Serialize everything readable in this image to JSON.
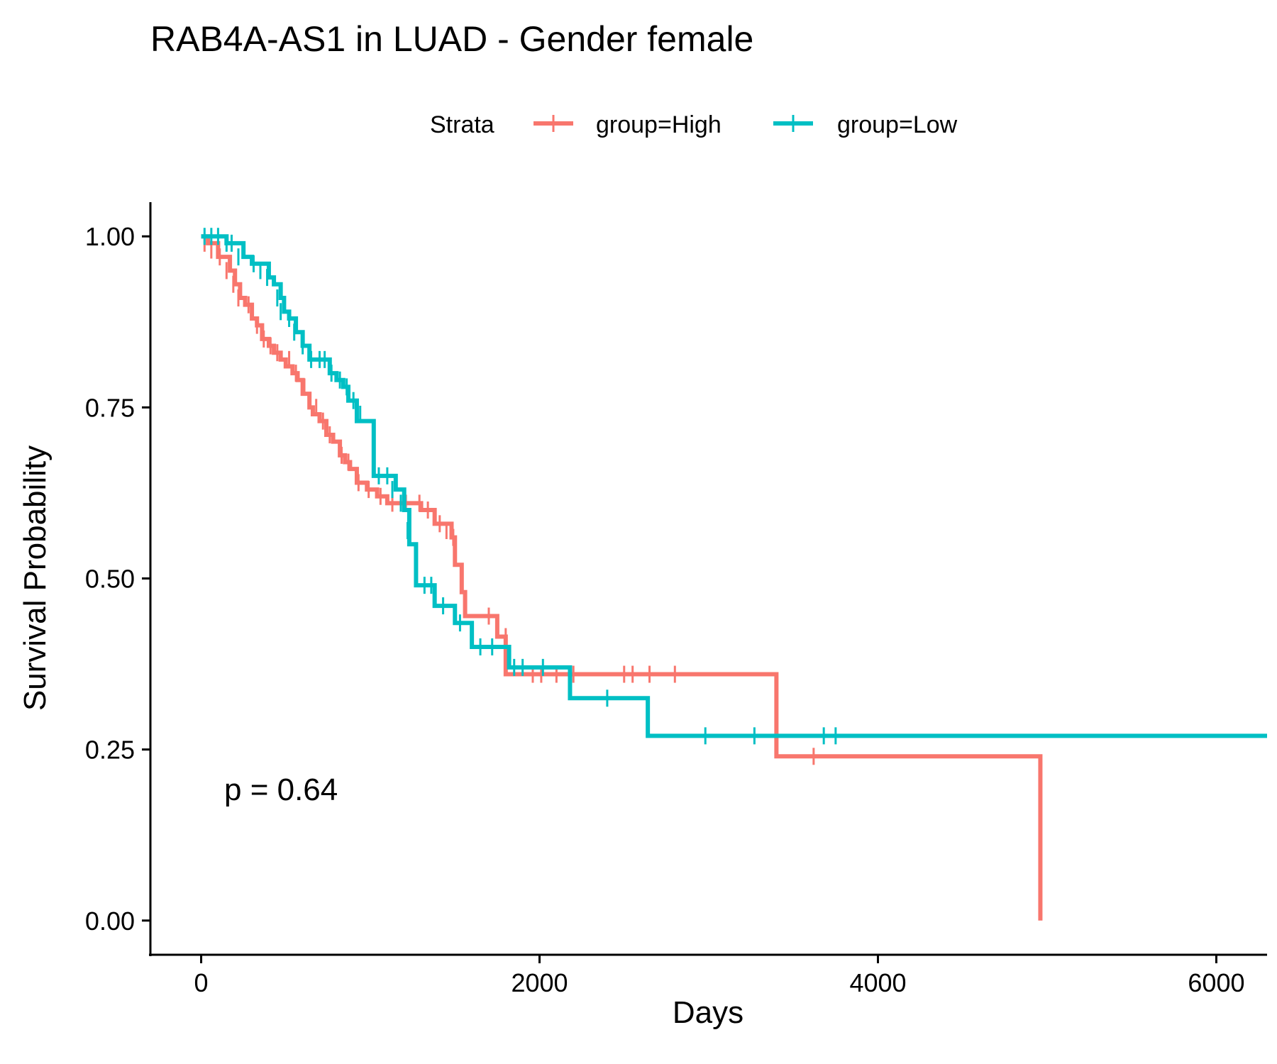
{
  "chart_data": {
    "type": "line",
    "title": "RAB4A-AS1 in LUAD - Gender female",
    "xlabel": "Days",
    "ylabel": "Survival Probability",
    "xlim": [
      -300,
      6300
    ],
    "ylim": [
      -0.05,
      1.05
    ],
    "x_ticks": [
      0,
      2000,
      4000,
      6000
    ],
    "x_tick_labels": [
      "0",
      "2000",
      "4000",
      "6000"
    ],
    "y_ticks": [
      0,
      0.25,
      0.5,
      0.75,
      1.0
    ],
    "y_tick_labels": [
      "0.00",
      "0.25",
      "0.50",
      "0.75",
      "1.00"
    ],
    "grid": false,
    "legend": {
      "position": "top",
      "title": "Strata",
      "entries": [
        "group=High",
        "group=Low"
      ]
    },
    "annotation": "p = 0.64",
    "series": [
      {
        "name": "group=High",
        "color": "#F8766D",
        "x": [
          0,
          40,
          100,
          170,
          200,
          230,
          260,
          300,
          330,
          360,
          400,
          430,
          470,
          500,
          540,
          570,
          600,
          640,
          660,
          700,
          740,
          780,
          820,
          850,
          880,
          920,
          980,
          1040,
          1100,
          1180,
          1300,
          1380,
          1480,
          1500,
          1540,
          1560,
          1720,
          1750,
          1800,
          1900,
          2200,
          3350,
          3400,
          4950,
          4960
        ],
        "y": [
          1.0,
          0.99,
          0.97,
          0.95,
          0.93,
          0.91,
          0.9,
          0.88,
          0.87,
          0.85,
          0.84,
          0.83,
          0.82,
          0.81,
          0.8,
          0.79,
          0.77,
          0.75,
          0.74,
          0.73,
          0.71,
          0.7,
          0.68,
          0.67,
          0.66,
          0.64,
          0.63,
          0.62,
          0.61,
          0.61,
          0.6,
          0.58,
          0.56,
          0.52,
          0.48,
          0.445,
          0.445,
          0.415,
          0.36,
          0.36,
          0.36,
          0.36,
          0.24,
          0.24,
          0.0
        ],
        "censor_x": [
          20,
          60,
          110,
          150,
          190,
          220,
          280,
          330,
          370,
          410,
          450,
          520,
          560,
          610,
          680,
          720,
          760,
          830,
          870,
          930,
          990,
          1060,
          1130,
          1210,
          1290,
          1340,
          1410,
          1450,
          1490,
          1700,
          1800,
          1960,
          2010,
          2100,
          2200,
          2500,
          2550,
          2650,
          2800,
          3620
        ],
        "censor_y": [
          0.99,
          0.98,
          0.97,
          0.95,
          0.93,
          0.91,
          0.9,
          0.87,
          0.85,
          0.84,
          0.83,
          0.82,
          0.8,
          0.78,
          0.75,
          0.73,
          0.71,
          0.68,
          0.67,
          0.64,
          0.63,
          0.62,
          0.61,
          0.61,
          0.61,
          0.6,
          0.58,
          0.57,
          0.56,
          0.445,
          0.415,
          0.36,
          0.36,
          0.36,
          0.36,
          0.36,
          0.36,
          0.36,
          0.36,
          0.24
        ]
      },
      {
        "name": "group=Low",
        "color": "#00BFC4",
        "x": [
          0,
          150,
          250,
          300,
          400,
          430,
          470,
          490,
          520,
          560,
          600,
          640,
          700,
          760,
          800,
          840,
          870,
          890,
          920,
          1000,
          1020,
          1100,
          1150,
          1200,
          1230,
          1270,
          1350,
          1380,
          1470,
          1500,
          1600,
          1820,
          1850,
          1950,
          2180,
          2640,
          6300
        ],
        "y": [
          1.0,
          0.99,
          0.97,
          0.96,
          0.94,
          0.93,
          0.91,
          0.89,
          0.88,
          0.86,
          0.84,
          0.82,
          0.82,
          0.8,
          0.79,
          0.78,
          0.76,
          0.76,
          0.73,
          0.73,
          0.65,
          0.65,
          0.63,
          0.6,
          0.55,
          0.49,
          0.49,
          0.46,
          0.46,
          0.435,
          0.4,
          0.37,
          0.37,
          0.37,
          0.325,
          0.27,
          0.27
        ],
        "censor_x": [
          20,
          60,
          100,
          150,
          180,
          220,
          310,
          350,
          390,
          450,
          470,
          520,
          550,
          600,
          650,
          700,
          730,
          770,
          820,
          860,
          900,
          940,
          1050,
          1100,
          1130,
          1180,
          1220,
          1270,
          1320,
          1360,
          1430,
          1530,
          1650,
          1720,
          1850,
          1900,
          2020,
          2400,
          2980,
          3270,
          3680,
          3750
        ],
        "censor_y": [
          1.0,
          1.0,
          1.0,
          0.99,
          0.99,
          0.97,
          0.96,
          0.95,
          0.94,
          0.91,
          0.89,
          0.88,
          0.86,
          0.84,
          0.82,
          0.82,
          0.82,
          0.8,
          0.79,
          0.78,
          0.76,
          0.74,
          0.65,
          0.65,
          0.63,
          0.61,
          0.57,
          0.53,
          0.49,
          0.49,
          0.46,
          0.435,
          0.4,
          0.4,
          0.37,
          0.37,
          0.37,
          0.325,
          0.27,
          0.27,
          0.27,
          0.27
        ]
      }
    ]
  }
}
